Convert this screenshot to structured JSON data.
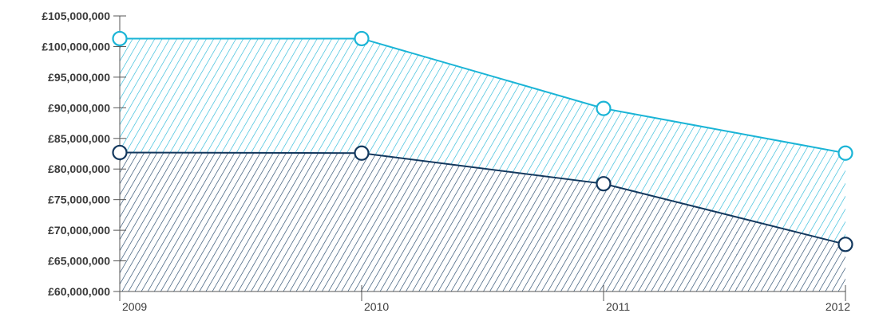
{
  "chart_data": {
    "type": "area",
    "x": [
      "2009",
      "2010",
      "2011",
      "2012"
    ],
    "series": [
      {
        "values": [
          101300000,
          101300000,
          89900000,
          82600000
        ],
        "color": "#1ab4d6"
      },
      {
        "values": [
          82700000,
          82600000,
          77600000,
          67700000
        ],
        "color": "#13385e"
      }
    ],
    "y_ticks": [
      {
        "value": 105000000,
        "label": "£105,000,000"
      },
      {
        "value": 100000000,
        "label": "£100,000,000"
      },
      {
        "value": 95000000,
        "label": "£95,000,000"
      },
      {
        "value": 90000000,
        "label": "£90,000,000"
      },
      {
        "value": 85000000,
        "label": "£85,000,000"
      },
      {
        "value": 80000000,
        "label": "£80,000,000"
      },
      {
        "value": 75000000,
        "label": "£75,000,000"
      },
      {
        "value": 70000000,
        "label": "£70,000,000"
      },
      {
        "value": 65000000,
        "label": "£65,000,000"
      },
      {
        "value": 60000000,
        "label": "£60,000,000"
      }
    ],
    "ylim": [
      60000000,
      105000000
    ],
    "grid": false,
    "fill_style": "diagonal-hatch",
    "marker": "open-circle"
  }
}
